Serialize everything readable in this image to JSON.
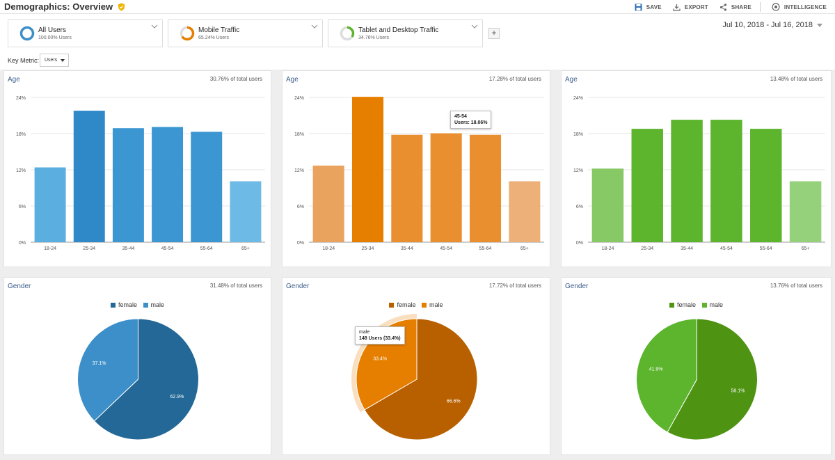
{
  "header": {
    "title": "Demographics: Overview",
    "actions": [
      {
        "label": "SAVE",
        "icon": "save-icon"
      },
      {
        "label": "EXPORT",
        "icon": "export-icon"
      },
      {
        "label": "SHARE",
        "icon": "share-icon"
      },
      {
        "label": "INTELLIGENCE",
        "icon": "intelligence-icon"
      }
    ]
  },
  "segments": [
    {
      "name": "All Users",
      "pct": "100.00% Users",
      "share": 1.0,
      "color": "#3d8fc9"
    },
    {
      "name": "Mobile Traffic",
      "pct": "65.24% Users",
      "share": 0.6524,
      "color": "#e67e00"
    },
    {
      "name": "Tablet and Desktop Traffic",
      "pct": "34.76% Users",
      "share": 0.3476,
      "color": "#5db52e"
    }
  ],
  "date_range": "Jul 10, 2018 - Jul 16, 2018",
  "key_metric": {
    "label": "Key Metric:",
    "value": "Users"
  },
  "age_panels": [
    {
      "title": "Age",
      "total": "30.76% of total users",
      "bar_colors": [
        "#5aafe0",
        "#2f89c9",
        "#3b96d2",
        "#3b96d2",
        "#3b96d2",
        "#6dbae6"
      ]
    },
    {
      "title": "Age",
      "total": "17.28% of total users",
      "bar_colors": [
        "#eaa35e",
        "#e67e00",
        "#e98f2f",
        "#e98f2f",
        "#e98f2f",
        "#edb079"
      ],
      "tooltip": {
        "title": "45-54",
        "text": "Users: 18.06%",
        "index": 3
      }
    },
    {
      "title": "Age",
      "total": "13.48% of total users",
      "bar_colors": [
        "#86c965",
        "#5db52e",
        "#5db52e",
        "#5db52e",
        "#5db52e",
        "#95d17a"
      ]
    }
  ],
  "gender_panels": [
    {
      "title": "Gender",
      "total": "31.48% of total users",
      "legend": [
        "female",
        "male"
      ],
      "colors": [
        "#236896",
        "#3d8fc9"
      ]
    },
    {
      "title": "Gender",
      "total": "17.72% of total users",
      "legend": [
        "female",
        "male"
      ],
      "colors": [
        "#b86000",
        "#e67e00"
      ],
      "tooltip": {
        "title": "male",
        "text": "148 Users (33.4%)"
      }
    },
    {
      "title": "Gender",
      "total": "13.76% of total users",
      "legend": [
        "female",
        "male"
      ],
      "colors": [
        "#4f9313",
        "#5db52e"
      ]
    }
  ],
  "chart_data": [
    {
      "type": "bar",
      "title": "Age",
      "categories": [
        "18-24",
        "25-34",
        "35-44",
        "45-54",
        "55-64",
        "65+"
      ],
      "values": [
        12.4,
        21.8,
        18.9,
        19.1,
        18.3,
        10.1
      ],
      "ylim": [
        0,
        24
      ],
      "yticks": [
        "0%",
        "6%",
        "12%",
        "18%",
        "24%"
      ],
      "grid": true
    },
    {
      "type": "bar",
      "title": "Age",
      "categories": [
        "18-24",
        "25-34",
        "35-44",
        "45-54",
        "55-64",
        "65+"
      ],
      "values": [
        12.7,
        24.1,
        17.8,
        18.06,
        17.8,
        10.1
      ],
      "ylim": [
        0,
        24
      ],
      "yticks": [
        "0%",
        "6%",
        "12%",
        "18%",
        "24%"
      ],
      "grid": true
    },
    {
      "type": "bar",
      "title": "Age",
      "categories": [
        "18-24",
        "25-34",
        "35-44",
        "45-54",
        "55-64",
        "65+"
      ],
      "values": [
        12.2,
        18.8,
        20.3,
        20.3,
        18.8,
        10.1
      ],
      "ylim": [
        0,
        24
      ],
      "yticks": [
        "0%",
        "6%",
        "12%",
        "18%",
        "24%"
      ],
      "grid": true
    },
    {
      "type": "pie",
      "title": "Gender",
      "categories": [
        "female",
        "male"
      ],
      "values": [
        62.9,
        37.1
      ],
      "labels": [
        "62.9%",
        "37.1%"
      ],
      "legend": "top"
    },
    {
      "type": "pie",
      "title": "Gender",
      "categories": [
        "female",
        "male"
      ],
      "values": [
        66.6,
        33.4
      ],
      "labels": [
        "66.6%",
        "33.4%"
      ],
      "legend": "top"
    },
    {
      "type": "pie",
      "title": "Gender",
      "categories": [
        "female",
        "male"
      ],
      "values": [
        58.1,
        41.9
      ],
      "labels": [
        "58.1%",
        "41.9%"
      ],
      "legend": "top"
    }
  ]
}
